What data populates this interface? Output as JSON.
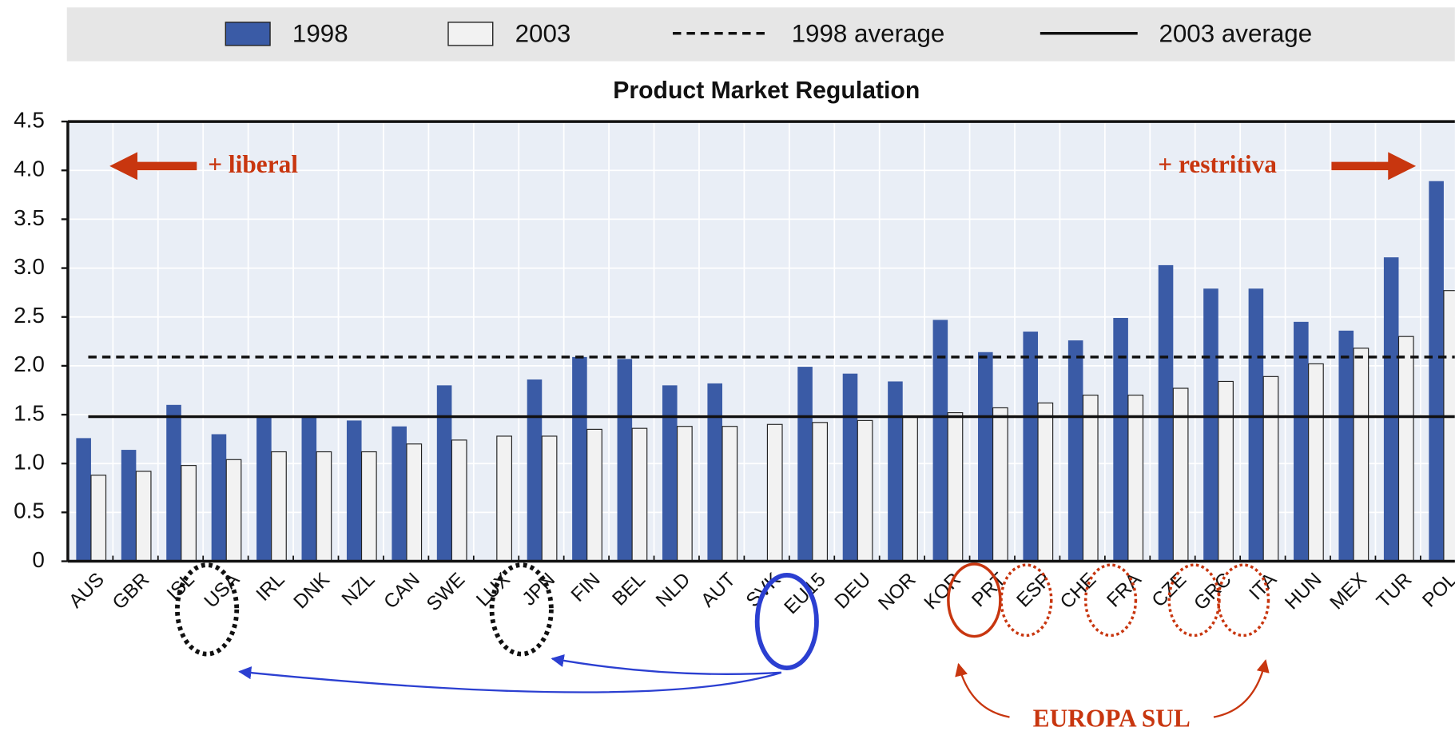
{
  "chart_data": {
    "type": "bar",
    "title": "Product Market Regulation",
    "categories": [
      "AUS",
      "GBR",
      "ISL",
      "USA",
      "IRL",
      "DNK",
      "NZL",
      "CAN",
      "SWE",
      "LUX",
      "JPN",
      "FIN",
      "BEL",
      "NLD",
      "AUT",
      "SVK",
      "EU15",
      "DEU",
      "NOR",
      "KOR",
      "PRT",
      "ESP",
      "CHE",
      "FRA",
      "CZE",
      "GRC",
      "ITA",
      "HUN",
      "MEX",
      "TUR",
      "POL"
    ],
    "series": [
      {
        "name": "1998",
        "color": "#3a5ba6",
        "values": [
          1.26,
          1.14,
          1.6,
          1.3,
          1.49,
          1.49,
          1.44,
          1.38,
          1.8,
          null,
          1.86,
          2.09,
          2.07,
          1.8,
          1.82,
          null,
          1.99,
          1.92,
          1.84,
          2.47,
          2.14,
          2.35,
          2.26,
          2.49,
          3.03,
          2.79,
          2.79,
          2.45,
          2.36,
          3.11,
          3.89
        ]
      },
      {
        "name": "2003",
        "color": "#f2f2f2",
        "values": [
          0.88,
          0.92,
          0.98,
          1.04,
          1.12,
          1.12,
          1.12,
          1.2,
          1.24,
          1.28,
          1.28,
          1.35,
          1.36,
          1.38,
          1.38,
          1.4,
          1.42,
          1.44,
          1.48,
          1.52,
          1.57,
          1.62,
          1.7,
          1.7,
          1.77,
          1.84,
          1.89,
          2.02,
          2.18,
          2.3,
          2.77
        ]
      }
    ],
    "reference_lines": [
      {
        "name": "1998 average",
        "value": 2.09,
        "style": "dashed"
      },
      {
        "name": "2003 average",
        "value": 1.48,
        "style": "solid"
      }
    ],
    "ylim": [
      0,
      4.5
    ],
    "yticks": [
      0,
      0.5,
      {
        "value": 1,
        "label": "1.0"
      },
      1.5,
      {
        "value": 2,
        "label": "2.0"
      },
      2.5,
      {
        "value": 3,
        "label": "3.0"
      },
      3.5,
      {
        "value": 4,
        "label": "4.0"
      },
      4.5
    ],
    "grid": true,
    "annotations": [
      "+ liberal",
      "+ restritiva",
      "EUROPA SUL"
    ]
  }
}
